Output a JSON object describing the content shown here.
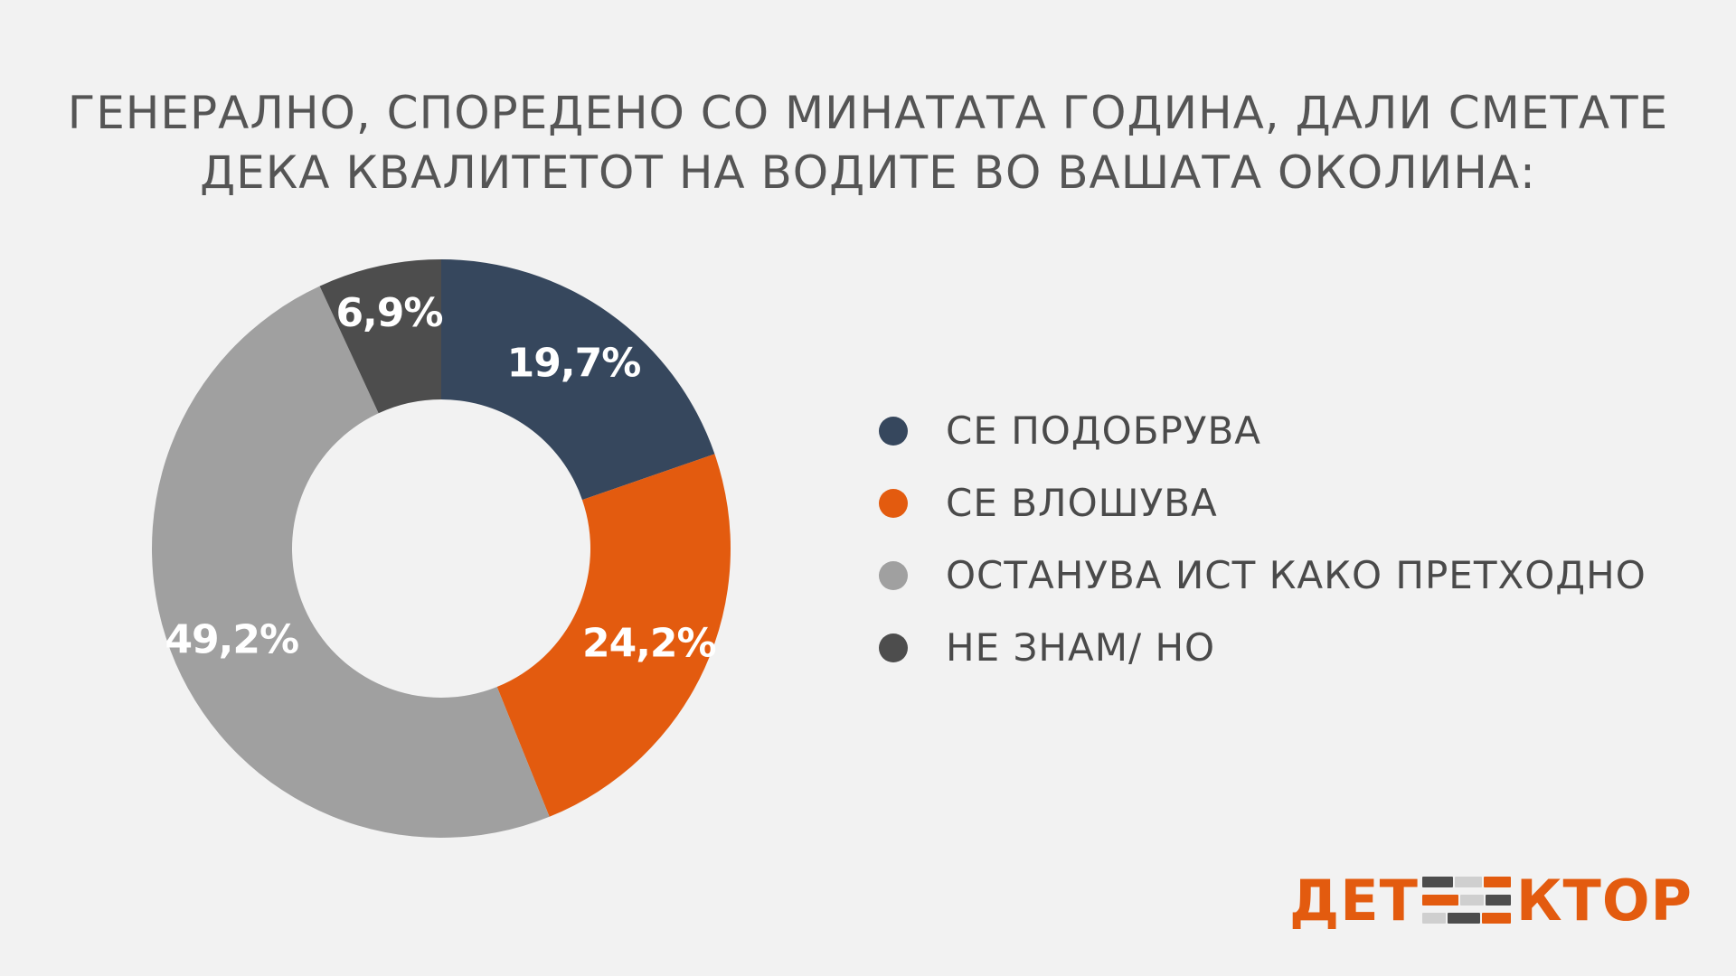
{
  "title_lines": [
    "ГЕНЕРАЛНО, СПОРЕДЕНО СО МИНАТАТА ГОДИНА, ДАЛИ СМЕТАТЕ",
    "ДЕКА КВАЛИТЕТОТ НА ВОДИТЕ ВО ВАШАТА ОКОЛИНА:"
  ],
  "chart_data": {
    "type": "pie",
    "donut": true,
    "title": "ГЕНЕРАЛНО, СПОРЕДЕНО СО МИНАТАТА ГОДИНА, ДАЛИ СМЕТАТЕ ДЕКА КВАЛИТЕТОТ НА ВОДИТЕ ВО ВАШАТА ОКОЛИНА:",
    "categories": [
      "СЕ ПОДОБРУВА",
      "СЕ ВЛОШУВА",
      "ОСТАНУВА ИСТ КАКО ПРЕТХОДНО",
      "НЕ ЗНАМ/ НО"
    ],
    "values": [
      19.7,
      24.2,
      49.2,
      6.9
    ],
    "value_labels": [
      "19,7%",
      "24,2%",
      "49,2%",
      "6,9%"
    ],
    "colors": [
      "#36475d",
      "#e35b0f",
      "#a0a0a0",
      "#4d4d4d"
    ],
    "legend_position": "right"
  },
  "logo": {
    "text_left": "ДЕТ",
    "text_right": "КТОР",
    "accent": "#e35b0f"
  }
}
